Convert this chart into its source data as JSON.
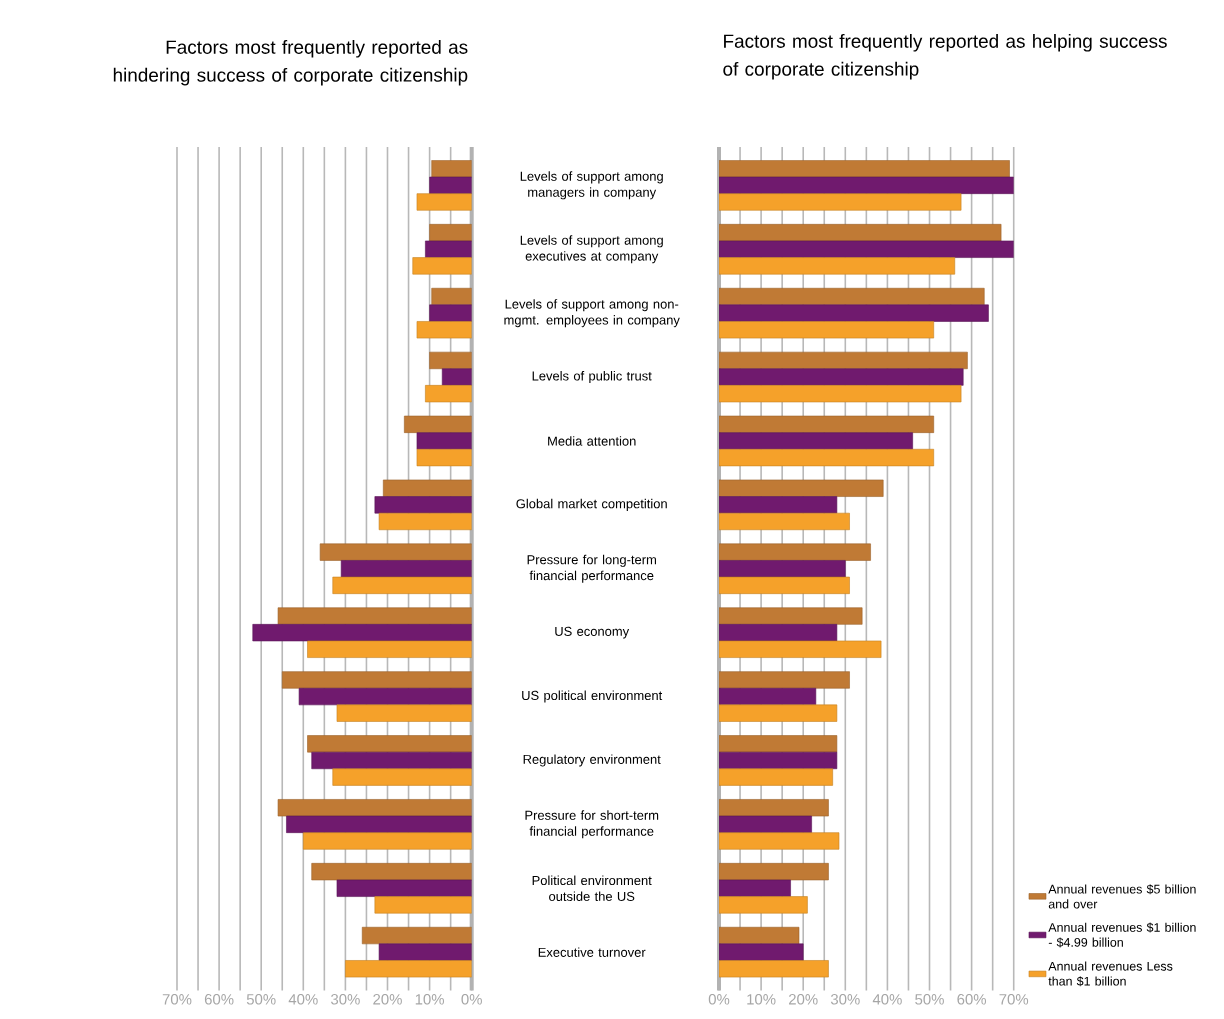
{
  "chart_data": [
    {
      "type": "bar",
      "orientation": "horizontal",
      "title": "Factors most frequently reported as hindering success of corporate citizenship",
      "categories": [
        "Levels of support among managers in company",
        "Levels of support among executives at company",
        "Levels of support among non-mgmt. employees in company",
        "Levels of public trust",
        "Media attention",
        "Global market competition",
        "Pressure for long-term financial performance",
        "US economy",
        "US political environment",
        "Regulatory environment",
        "Pressure for short-term financial performance",
        "Political environment outside the US",
        "Executive turnover"
      ],
      "series": [
        {
          "color": "#c07a35",
          "values": [
            9.5,
            10,
            9.5,
            10,
            16,
            21,
            36,
            46,
            45,
            39,
            46,
            38,
            26
          ]
        },
        {
          "color": "#701a6e",
          "values": [
            10,
            11,
            10,
            7,
            13,
            23,
            31,
            52,
            41,
            38,
            44,
            32,
            22
          ]
        },
        {
          "color": "#f5a12a",
          "values": [
            13,
            14,
            13,
            11,
            13,
            22,
            33,
            39,
            32,
            33,
            40,
            23,
            30
          ]
        }
      ],
      "xlim": [
        70,
        0
      ],
      "xticks": [
        {
          "value": 70,
          "label": "70%"
        },
        {
          "value": 65,
          "label": null
        },
        {
          "value": 60,
          "label": "60%"
        },
        {
          "value": 55,
          "label": null
        },
        {
          "value": 50,
          "label": "50%"
        },
        {
          "value": 45,
          "label": null
        },
        {
          "value": 40,
          "label": "40%"
        },
        {
          "value": 35,
          "label": null
        },
        {
          "value": 30,
          "label": "30%"
        },
        {
          "value": 25,
          "label": null
        },
        {
          "value": 20,
          "label": "20%"
        },
        {
          "value": 15,
          "label": null
        },
        {
          "value": 10,
          "label": "10%"
        },
        {
          "value": 5,
          "label": null
        },
        {
          "value": 0,
          "label": "0%"
        }
      ],
      "grid": "x"
    },
    {
      "type": "bar",
      "orientation": "horizontal",
      "title": "Factors most frequently reported as helping success of corporate citizenship",
      "categories": [
        null,
        null,
        null,
        null,
        null,
        null,
        null,
        null,
        null,
        null,
        null,
        null,
        null
      ],
      "tick_labels": "x",
      "series": [
        {
          "name": "Annual revenues $5 billion and over",
          "color": "#c07a35",
          "values": [
            69,
            67,
            63,
            59,
            51,
            39,
            36,
            34,
            31,
            28,
            26,
            26,
            19
          ]
        },
        {
          "name": "Annual revenues $1 billion - $4.99 billion",
          "color": "#701a6e",
          "values": [
            70,
            70,
            64,
            58,
            46,
            28,
            30,
            28,
            23,
            28,
            22,
            17,
            20
          ]
        },
        {
          "name": "Annual revenues Less than $1 billion",
          "color": "#f5a12a",
          "values": [
            57.5,
            56,
            51,
            57.5,
            51,
            31,
            31,
            38.5,
            28,
            27,
            28.5,
            21,
            26
          ]
        }
      ],
      "xlim": [
        0,
        70
      ],
      "xticks": [
        {
          "value": 0,
          "label": "0%"
        },
        {
          "value": 5,
          "label": null
        },
        {
          "value": 10,
          "label": "10%"
        },
        {
          "value": 15,
          "label": null
        },
        {
          "value": 20,
          "label": "20%"
        },
        {
          "value": 25,
          "label": null
        },
        {
          "value": 30,
          "label": "30%"
        },
        {
          "value": 35,
          "label": null
        },
        {
          "value": 40,
          "label": "40%"
        },
        {
          "value": 45,
          "label": null
        },
        {
          "value": 50,
          "label": "50%"
        },
        {
          "value": 55,
          "label": null
        },
        {
          "value": 60,
          "label": "60%"
        },
        {
          "value": 65,
          "label": null
        },
        {
          "value": 70,
          "label": "70%"
        }
      ],
      "grid": "x",
      "legend": "bottom right"
    }
  ]
}
